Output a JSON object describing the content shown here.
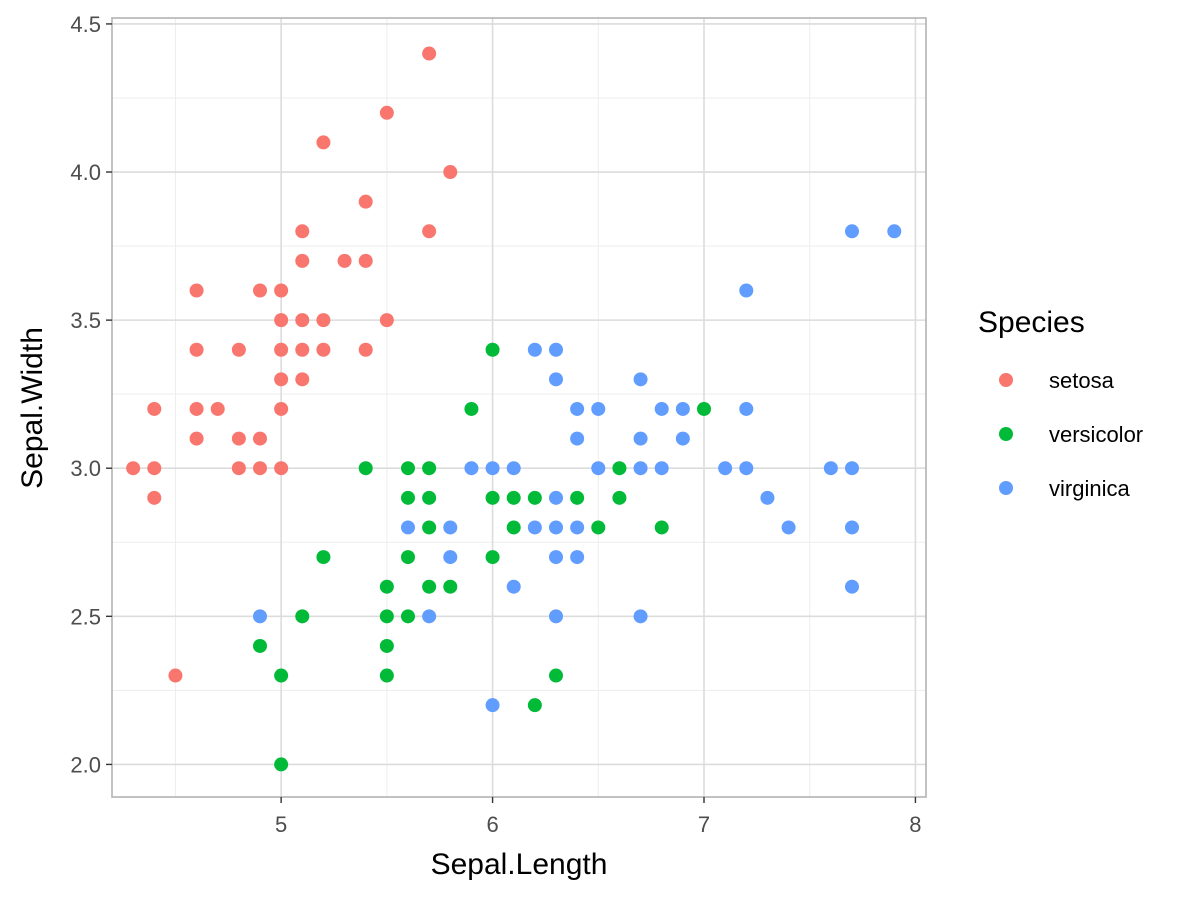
{
  "chart_data": {
    "type": "scatter",
    "xlabel": "Sepal.Length",
    "ylabel": "Sepal.Width",
    "xlim": [
      4.2,
      8.05
    ],
    "ylim": [
      1.89,
      4.52
    ],
    "x_ticks": [
      5,
      6,
      7,
      8
    ],
    "x_tick_labels": [
      "5",
      "6",
      "7",
      "8"
    ],
    "y_ticks": [
      2.0,
      2.5,
      3.0,
      3.5,
      4.0,
      4.5
    ],
    "y_tick_labels": [
      "2.0",
      "2.5",
      "3.0",
      "3.5",
      "4.0",
      "4.5"
    ],
    "grid": true,
    "legend": {
      "title": "Species",
      "placement": "right"
    },
    "series": [
      {
        "name": "setosa",
        "color": "#F8766D",
        "points": [
          [
            5.7,
            4.4
          ],
          [
            5.5,
            4.2
          ],
          [
            5.2,
            4.1
          ],
          [
            5.8,
            4.0
          ],
          [
            5.4,
            3.9
          ],
          [
            5.1,
            3.8
          ],
          [
            5.7,
            3.8
          ],
          [
            5.1,
            3.7
          ],
          [
            5.3,
            3.7
          ],
          [
            5.4,
            3.7
          ],
          [
            4.6,
            3.6
          ],
          [
            4.9,
            3.6
          ],
          [
            5.0,
            3.6
          ],
          [
            5.0,
            3.5
          ],
          [
            5.1,
            3.5
          ],
          [
            5.2,
            3.5
          ],
          [
            5.5,
            3.5
          ],
          [
            4.6,
            3.4
          ],
          [
            4.8,
            3.4
          ],
          [
            5.0,
            3.4
          ],
          [
            5.1,
            3.4
          ],
          [
            5.2,
            3.4
          ],
          [
            5.4,
            3.4
          ],
          [
            5.0,
            3.3
          ],
          [
            5.1,
            3.3
          ],
          [
            4.4,
            3.2
          ],
          [
            4.6,
            3.2
          ],
          [
            4.7,
            3.2
          ],
          [
            5.0,
            3.2
          ],
          [
            4.6,
            3.1
          ],
          [
            4.8,
            3.1
          ],
          [
            4.9,
            3.1
          ],
          [
            4.3,
            3.0
          ],
          [
            4.4,
            3.0
          ],
          [
            4.8,
            3.0
          ],
          [
            4.9,
            3.0
          ],
          [
            5.0,
            3.0
          ],
          [
            4.4,
            2.9
          ],
          [
            4.5,
            2.3
          ]
        ]
      },
      {
        "name": "versicolor",
        "color": "#00BA38",
        "points": [
          [
            6.0,
            3.4
          ],
          [
            5.9,
            3.2
          ],
          [
            7.0,
            3.2
          ],
          [
            5.4,
            3.0
          ],
          [
            5.6,
            3.0
          ],
          [
            5.7,
            3.0
          ],
          [
            6.6,
            3.0
          ],
          [
            5.6,
            2.9
          ],
          [
            5.7,
            2.9
          ],
          [
            6.0,
            2.9
          ],
          [
            6.1,
            2.9
          ],
          [
            6.2,
            2.9
          ],
          [
            6.4,
            2.9
          ],
          [
            6.6,
            2.9
          ],
          [
            5.7,
            2.8
          ],
          [
            6.1,
            2.8
          ],
          [
            6.5,
            2.8
          ],
          [
            6.8,
            2.8
          ],
          [
            5.2,
            2.7
          ],
          [
            5.6,
            2.7
          ],
          [
            6.0,
            2.7
          ],
          [
            5.5,
            2.6
          ],
          [
            5.7,
            2.6
          ],
          [
            5.8,
            2.6
          ],
          [
            5.1,
            2.5
          ],
          [
            5.5,
            2.5
          ],
          [
            5.6,
            2.5
          ],
          [
            4.9,
            2.4
          ],
          [
            5.5,
            2.4
          ],
          [
            5.0,
            2.3
          ],
          [
            5.5,
            2.3
          ],
          [
            6.3,
            2.3
          ],
          [
            6.2,
            2.2
          ],
          [
            5.0,
            2.0
          ]
        ]
      },
      {
        "name": "virginica",
        "color": "#619CFF",
        "points": [
          [
            7.7,
            3.8
          ],
          [
            7.9,
            3.8
          ],
          [
            7.2,
            3.6
          ],
          [
            6.2,
            3.4
          ],
          [
            6.3,
            3.4
          ],
          [
            6.3,
            3.3
          ],
          [
            6.7,
            3.3
          ],
          [
            6.4,
            3.2
          ],
          [
            6.5,
            3.2
          ],
          [
            6.8,
            3.2
          ],
          [
            6.9,
            3.2
          ],
          [
            7.2,
            3.2
          ],
          [
            6.4,
            3.1
          ],
          [
            6.7,
            3.1
          ],
          [
            6.9,
            3.1
          ],
          [
            5.9,
            3.0
          ],
          [
            6.0,
            3.0
          ],
          [
            6.1,
            3.0
          ],
          [
            6.5,
            3.0
          ],
          [
            6.7,
            3.0
          ],
          [
            6.8,
            3.0
          ],
          [
            7.1,
            3.0
          ],
          [
            7.2,
            3.0
          ],
          [
            7.6,
            3.0
          ],
          [
            7.7,
            3.0
          ],
          [
            6.3,
            2.9
          ],
          [
            7.3,
            2.9
          ],
          [
            5.6,
            2.8
          ],
          [
            5.8,
            2.8
          ],
          [
            6.2,
            2.8
          ],
          [
            6.3,
            2.8
          ],
          [
            6.4,
            2.8
          ],
          [
            7.4,
            2.8
          ],
          [
            7.7,
            2.8
          ],
          [
            5.8,
            2.7
          ],
          [
            6.3,
            2.7
          ],
          [
            6.4,
            2.7
          ],
          [
            6.1,
            2.6
          ],
          [
            7.7,
            2.6
          ],
          [
            4.9,
            2.5
          ],
          [
            5.7,
            2.5
          ],
          [
            6.3,
            2.5
          ],
          [
            6.7,
            2.5
          ],
          [
            6.0,
            2.2
          ]
        ]
      }
    ]
  }
}
